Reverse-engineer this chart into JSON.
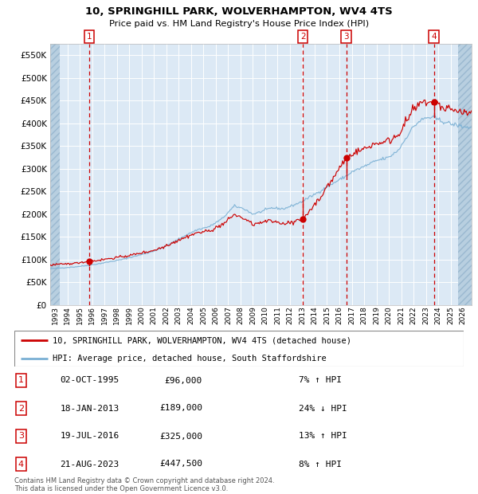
{
  "title": "10, SPRINGHILL PARK, WOLVERHAMPTON, WV4 4TS",
  "subtitle": "Price paid vs. HM Land Registry's House Price Index (HPI)",
  "ylabel_vals": [
    "£0",
    "£50K",
    "£100K",
    "£150K",
    "£200K",
    "£250K",
    "£300K",
    "£350K",
    "£400K",
    "£450K",
    "£500K",
    "£550K"
  ],
  "ylabel_nums": [
    0,
    50000,
    100000,
    150000,
    200000,
    250000,
    300000,
    350000,
    400000,
    450000,
    500000,
    550000
  ],
  "xlim_start": 1992.6,
  "xlim_end": 2026.7,
  "ylim": [
    0,
    575000
  ],
  "sale_dates": [
    1995.75,
    2013.05,
    2016.55,
    2023.64
  ],
  "sale_prices": [
    96000,
    189000,
    325000,
    447500
  ],
  "legend_line1": "10, SPRINGHILL PARK, WOLVERHAMPTON, WV4 4TS (detached house)",
  "legend_line2": "HPI: Average price, detached house, South Staffordshire",
  "transactions": [
    {
      "num": 1,
      "date": "02-OCT-1995",
      "price": "£96,000",
      "hpi": "7% ↑ HPI"
    },
    {
      "num": 2,
      "date": "18-JAN-2013",
      "price": "£189,000",
      "hpi": "24% ↓ HPI"
    },
    {
      "num": 3,
      "date": "19-JUL-2016",
      "price": "£325,000",
      "hpi": "13% ↑ HPI"
    },
    {
      "num": 4,
      "date": "21-AUG-2023",
      "price": "£447,500",
      "hpi": "8% ↑ HPI"
    }
  ],
  "footnote": "Contains HM Land Registry data © Crown copyright and database right 2024.\nThis data is licensed under the Open Government Licence v3.0.",
  "chart_bg": "#dce9f5",
  "hatch_color": "#b8cfe0",
  "hatch_edge": "#9ab8d0",
  "grid_color": "#ffffff",
  "red_color": "#cc0000",
  "blue_color": "#7ab0d4"
}
